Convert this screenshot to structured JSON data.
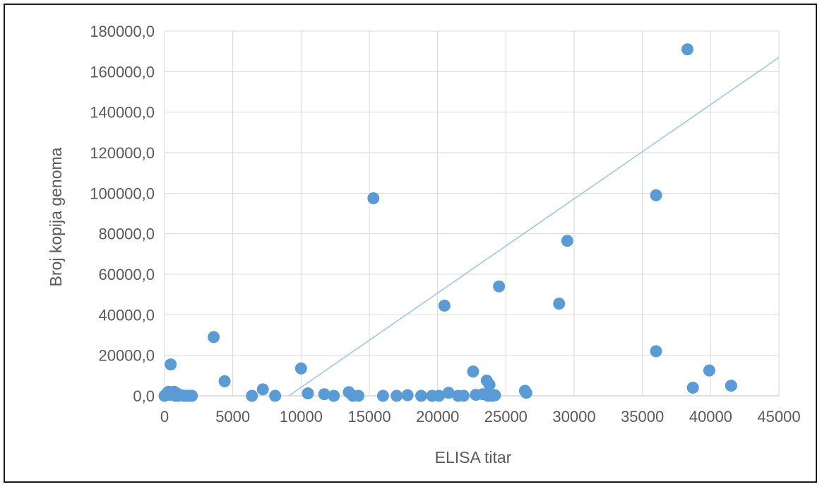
{
  "chart_data": {
    "type": "scatter",
    "xlabel": "ELISA titar",
    "ylabel": "Broj kopija genoma",
    "xlim": [
      0,
      45000
    ],
    "ylim": [
      0,
      180000
    ],
    "x_ticks": [
      "0",
      "5000",
      "10000",
      "15000",
      "20000",
      "25000",
      "30000",
      "35000",
      "40000",
      "45000"
    ],
    "y_ticks": [
      "0,0",
      "20000,0",
      "40000,0",
      "60000,0",
      "80000,0",
      "100000,0",
      "120000,0",
      "140000,0",
      "160000,0",
      "180000,0"
    ],
    "grid": "vertical and horizontal",
    "marker_color": "#5b9bd5",
    "trendline_color": "#9dc3e6",
    "points": [
      [
        0,
        0
      ],
      [
        100,
        500
      ],
      [
        200,
        1500
      ],
      [
        300,
        2000
      ],
      [
        400,
        500
      ],
      [
        450,
        15500
      ],
      [
        600,
        800
      ],
      [
        700,
        2000
      ],
      [
        800,
        0
      ],
      [
        900,
        1200
      ],
      [
        1000,
        0
      ],
      [
        1200,
        300
      ],
      [
        1400,
        0
      ],
      [
        1600,
        0
      ],
      [
        1800,
        0
      ],
      [
        2000,
        0
      ],
      [
        3600,
        29000
      ],
      [
        4400,
        7200
      ],
      [
        6400,
        0
      ],
      [
        7200,
        3200
      ],
      [
        8100,
        0
      ],
      [
        10000,
        13500
      ],
      [
        10500,
        1200
      ],
      [
        11700,
        800
      ],
      [
        12400,
        0
      ],
      [
        13500,
        1800
      ],
      [
        13800,
        0
      ],
      [
        14200,
        0
      ],
      [
        15300,
        97500
      ],
      [
        16000,
        0
      ],
      [
        17000,
        0
      ],
      [
        17800,
        300
      ],
      [
        18800,
        0
      ],
      [
        19600,
        0
      ],
      [
        20100,
        0
      ],
      [
        20500,
        44500
      ],
      [
        20800,
        1500
      ],
      [
        21500,
        0
      ],
      [
        21900,
        0
      ],
      [
        22600,
        12000
      ],
      [
        22800,
        500
      ],
      [
        23300,
        800
      ],
      [
        23600,
        7500
      ],
      [
        23700,
        0
      ],
      [
        23800,
        5500
      ],
      [
        24000,
        0
      ],
      [
        24200,
        300
      ],
      [
        24500,
        54000
      ],
      [
        26400,
        2500
      ],
      [
        26500,
        1500
      ],
      [
        28900,
        45500
      ],
      [
        29500,
        76500
      ],
      [
        36000,
        99000
      ],
      [
        36000,
        22000
      ],
      [
        38300,
        171000
      ],
      [
        38700,
        4000
      ],
      [
        39900,
        12500
      ],
      [
        41500,
        5000
      ]
    ],
    "trendline": {
      "x": [
        9100,
        45000
      ],
      "y": [
        0,
        167000
      ]
    }
  }
}
